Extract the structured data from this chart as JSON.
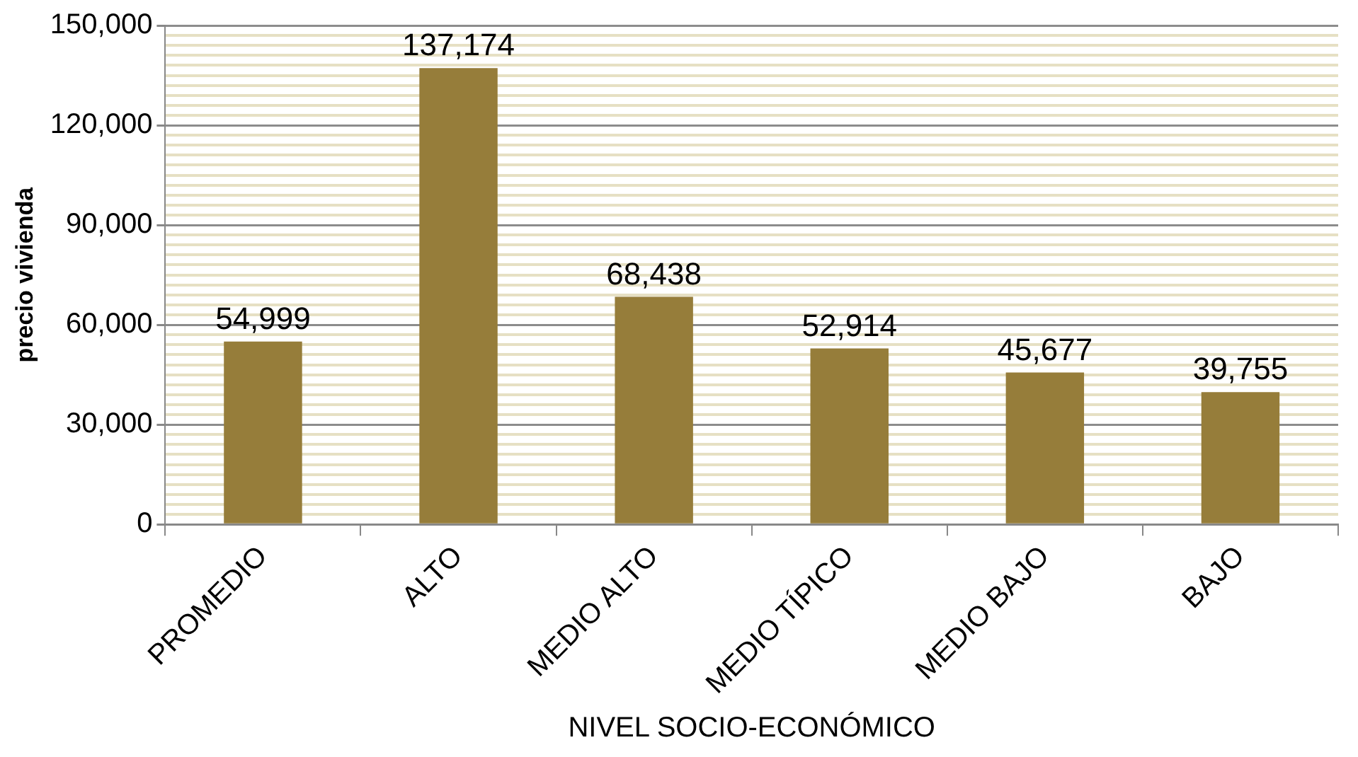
{
  "chart_data": {
    "type": "bar",
    "xlabel": "NIVEL SOCIO-ECONÓMICO",
    "ylabel": "precio vivienda",
    "categories": [
      "PROMEDIO",
      "ALTO",
      "MEDIO ALTO",
      "MEDIO TÍPICO",
      "MEDIO BAJO",
      "BAJO"
    ],
    "values": [
      54999,
      137174,
      68438,
      52914,
      45677,
      39755
    ],
    "color": "#967d3a",
    "value_labels": [
      "54,999",
      "137,174",
      "68,438",
      "52,914",
      "45,677",
      "39,755"
    ],
    "ylim": [
      0,
      150000
    ],
    "yticks": [
      "0",
      {
        "value": 3000,
        "label": null
      },
      {
        "value": 6000,
        "label": null
      },
      {
        "value": 9000,
        "label": null
      },
      {
        "value": 12000,
        "label": null
      },
      {
        "value": 15000,
        "label": null
      },
      {
        "value": 18000,
        "label": null
      },
      {
        "value": 21000,
        "label": null
      },
      {
        "value": 24000,
        "label": null
      },
      {
        "value": 27000,
        "label": null
      },
      {
        "value": 30000,
        "label": "30,000"
      },
      {
        "value": 33000,
        "label": null
      },
      {
        "value": 36000,
        "label": null
      },
      {
        "value": 39000,
        "label": null
      },
      {
        "value": 42000,
        "label": null
      },
      {
        "value": 45000,
        "label": null
      },
      {
        "value": 48000,
        "label": null
      },
      {
        "value": 51000,
        "label": null
      },
      {
        "value": 54000,
        "label": null
      },
      {
        "value": 57000,
        "label": null
      },
      {
        "value": 60000,
        "label": "60,000"
      },
      {
        "value": 63000,
        "label": null
      },
      {
        "value": 66000,
        "label": null
      },
      {
        "value": 69000,
        "label": null
      },
      {
        "value": 72000,
        "label": null
      },
      {
        "value": 75000,
        "label": null
      },
      {
        "value": 78000,
        "label": null
      },
      {
        "value": 81000,
        "label": null
      },
      {
        "value": 84000,
        "label": null
      },
      {
        "value": 87000,
        "label": null
      },
      {
        "value": 90000,
        "label": "90,000"
      },
      {
        "value": 93000,
        "label": null
      },
      {
        "value": 96000,
        "label": null
      },
      {
        "value": 99000,
        "label": null
      },
      {
        "value": 102000,
        "label": null
      },
      {
        "value": 105000,
        "label": null
      },
      {
        "value": 108000,
        "label": null
      },
      {
        "value": 111000,
        "label": null
      },
      {
        "value": 114000,
        "label": null
      },
      {
        "value": 117000,
        "label": null
      },
      {
        "value": 120000,
        "label": "120,000"
      },
      {
        "value": 123000,
        "label": null
      },
      {
        "value": 126000,
        "label": null
      },
      {
        "value": 129000,
        "label": null
      },
      {
        "value": 132000,
        "label": null
      },
      {
        "value": 135000,
        "label": null
      },
      {
        "value": 138000,
        "label": null
      },
      {
        "value": 141000,
        "label": null
      },
      {
        "value": 144000,
        "label": null
      },
      {
        "value": 147000,
        "label": null
      },
      {
        "value": 150000,
        "label": "150,000"
      }
    ],
    "grid": "y"
  }
}
